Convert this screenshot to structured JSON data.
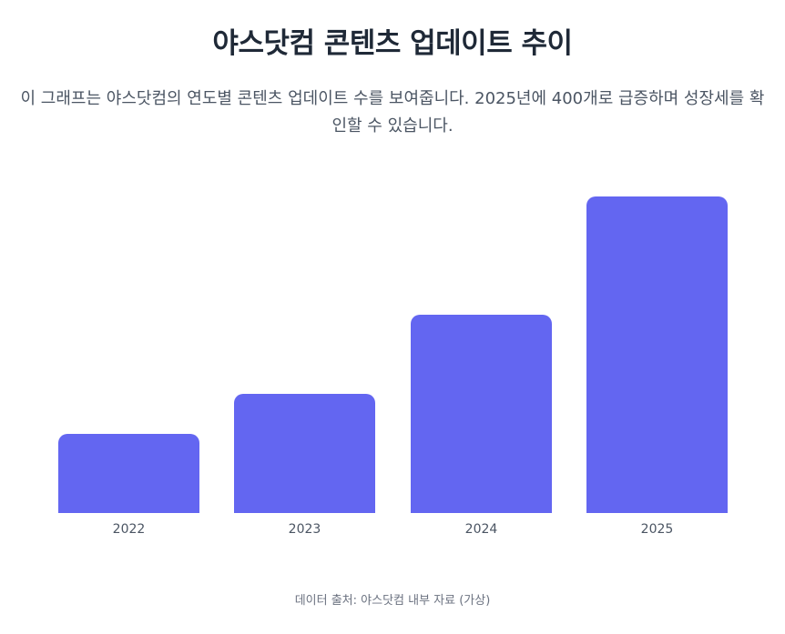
{
  "header": {
    "title": "야스닷컴 콘텐츠 업데이트 추이",
    "description": "이 그래프는 야스닷컴의 연도별 콘텐츠 업데이트 수를 보여줍니다. 2025년에 400개로 급증하며 성장세를 확인할 수 있습니다."
  },
  "footer": {
    "source": "데이터 출처: 야스닷컴 내부 자료 (가상)"
  },
  "colors": {
    "bar": "#6366F1",
    "title": "#1f2937",
    "text": "#4b5563",
    "muted": "#6b7280"
  },
  "chart_data": {
    "type": "bar",
    "title": "야스닷컴 콘텐츠 업데이트 추이",
    "subtitle": "이 그래프는 야스닷컴의 연도별 콘텐츠 업데이트 수를 보여줍니다. 2025년에 400개로 급증하며 성장세를 확인할 수 있습니다.",
    "categories": [
      "2022",
      "2023",
      "2024",
      "2025"
    ],
    "values": [
      100,
      150,
      250,
      400
    ],
    "xlabel": "",
    "ylabel": "콘텐츠 업데이트 수",
    "ylim": [
      0,
      400
    ],
    "grid": false,
    "legend": "none",
    "annotations": [
      "데이터 출처: 야스닷컴 내부 자료 (가상)"
    ]
  }
}
